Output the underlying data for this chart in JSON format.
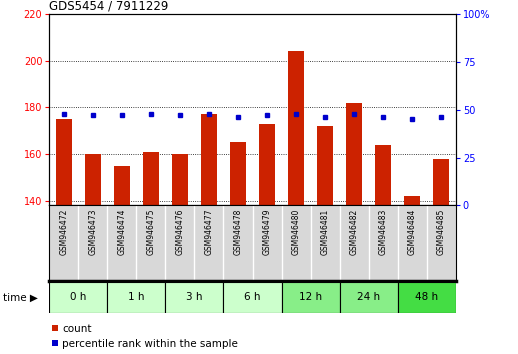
{
  "title": "GDS5454 / 7911229",
  "samples": [
    "GSM946472",
    "GSM946473",
    "GSM946474",
    "GSM946475",
    "GSM946476",
    "GSM946477",
    "GSM946478",
    "GSM946479",
    "GSM946480",
    "GSM946481",
    "GSM946482",
    "GSM946483",
    "GSM946484",
    "GSM946485"
  ],
  "count_values": [
    175,
    160,
    155,
    161,
    160,
    177,
    165,
    173,
    204,
    172,
    182,
    164,
    142,
    158
  ],
  "percentile_values": [
    48,
    47,
    47,
    48,
    47,
    48,
    46,
    47,
    48,
    46,
    48,
    46,
    45,
    46
  ],
  "time_groups": [
    {
      "label": "0 h",
      "start": 0,
      "end": 2,
      "color": "#ccffcc"
    },
    {
      "label": "1 h",
      "start": 2,
      "end": 4,
      "color": "#ccffcc"
    },
    {
      "label": "3 h",
      "start": 4,
      "end": 6,
      "color": "#ccffcc"
    },
    {
      "label": "6 h",
      "start": 6,
      "end": 8,
      "color": "#ccffcc"
    },
    {
      "label": "12 h",
      "start": 8,
      "end": 10,
      "color": "#88ee88"
    },
    {
      "label": "24 h",
      "start": 10,
      "end": 12,
      "color": "#88ee88"
    },
    {
      "label": "48 h",
      "start": 12,
      "end": 14,
      "color": "#44dd44"
    }
  ],
  "ylim_left": [
    138,
    220
  ],
  "ylim_right": [
    0,
    100
  ],
  "yticks_left": [
    140,
    160,
    180,
    200,
    220
  ],
  "yticks_right": [
    0,
    25,
    50,
    75,
    100
  ],
  "bar_color": "#cc2200",
  "dot_color": "#0000cc",
  "bar_width": 0.55,
  "grid_color": "#000000",
  "bg_plot": "#ffffff",
  "bg_fig": "#ffffff",
  "label_bg": "#d8d8d8",
  "label_sep_color": "#ffffff"
}
